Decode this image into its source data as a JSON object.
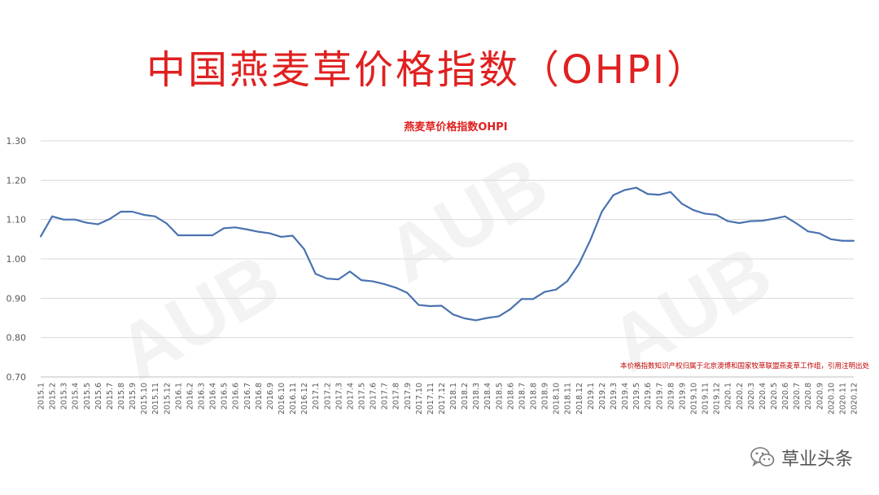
{
  "page_title": "中国燕麦草价格指数（OHPI）",
  "watermark_text": "AUB",
  "brand": {
    "name": "草业头条",
    "icon": "wechat-icon"
  },
  "colors": {
    "title": "#e02020",
    "line": "#4a72b0",
    "note": "#c00000",
    "grid": "#d9d9d9"
  },
  "chart_data": {
    "type": "line",
    "title": "燕麦草价格指数OHPI",
    "xlabel": "",
    "ylabel": "",
    "ylim": [
      0.7,
      1.3
    ],
    "yticks": [
      "0.70",
      "0.80",
      "0.90",
      "1.00",
      "1.10",
      "1.20",
      "1.30"
    ],
    "grid": true,
    "note": "本价格指数知识产权归属于北京澳博和国家牧草联盟燕麦草工作组，引用注明出处",
    "categories": [
      "2015.1",
      "2015.2",
      "2015.3",
      "2015.4",
      "2015.5",
      "2015.6",
      "2015.7",
      "2015.8",
      "2015.9",
      "2015.10",
      "2015.11",
      "2015.12",
      "2016.1",
      "2016.2",
      "2016.3",
      "2016.4",
      "2016.5",
      "2016.6",
      "2016.7",
      "2016.8",
      "2016.9",
      "2016.10",
      "2016.11",
      "2016.12",
      "2017.1",
      "2017.2",
      "2017.3",
      "2017.4",
      "2017.5",
      "2017.6",
      "2017.7",
      "2017.8",
      "2017.9",
      "2017.10",
      "2017.11",
      "2017.12",
      "2018.1",
      "2018.2",
      "2018.3",
      "2018.4",
      "2018.5",
      "2018.6",
      "2018.7",
      "2018.8",
      "2018.9",
      "2018.10",
      "2018.11",
      "2018.12",
      "2019.1",
      "2019.2",
      "2019.3",
      "2019.4",
      "2019.5",
      "2019.6",
      "2019.7",
      "2019.8",
      "2019.9",
      "2019.10",
      "2019.11",
      "2019.12",
      "2020.1",
      "2020.2",
      "2020.3",
      "2020.4",
      "2020.5",
      "2020.6",
      "2020.7",
      "2020.8",
      "2020.9",
      "2020.10",
      "2020.11",
      "2020.12"
    ],
    "series": [
      {
        "values": [
          1.057,
          1.108,
          1.1,
          1.1,
          1.092,
          1.088,
          1.101,
          1.12,
          1.12,
          1.112,
          1.108,
          1.09,
          1.06,
          1.06,
          1.06,
          1.06,
          1.078,
          1.08,
          1.075,
          1.069,
          1.065,
          1.056,
          1.059,
          1.025,
          0.962,
          0.95,
          0.948,
          0.968,
          0.946,
          0.943,
          0.936,
          0.927,
          0.914,
          0.883,
          0.88,
          0.881,
          0.859,
          0.849,
          0.844,
          0.85,
          0.854,
          0.872,
          0.898,
          0.898,
          0.916,
          0.922,
          0.944,
          0.987,
          1.048,
          1.12,
          1.162,
          1.175,
          1.181,
          1.165,
          1.163,
          1.17,
          1.14,
          1.124,
          1.115,
          1.112,
          1.096,
          1.091,
          1.096,
          1.097,
          1.102,
          1.108,
          1.09,
          1.07,
          1.065,
          1.05,
          1.046,
          1.046
        ]
      }
    ]
  }
}
